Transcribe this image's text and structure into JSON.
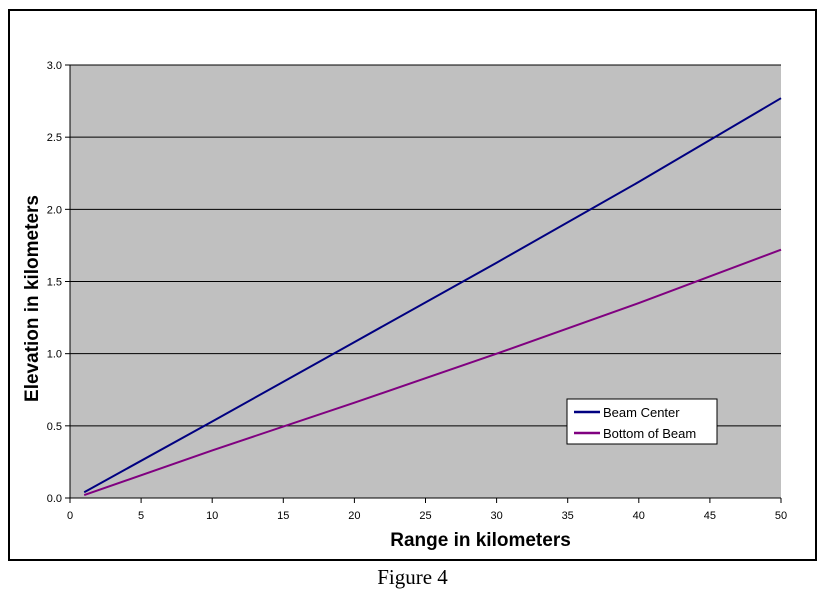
{
  "caption": "Figure 4",
  "colors": {
    "plot_bg": "#c0c0c0",
    "grid": "#000000",
    "beam_center": "#000080",
    "bottom_of_beam": "#800080"
  },
  "chart_data": {
    "type": "line",
    "title": "",
    "xlabel": "Range in kilometers",
    "ylabel": "Elevation in kilometers",
    "xlim": [
      0,
      50
    ],
    "ylim": [
      0,
      3.0
    ],
    "x_ticks": [
      "0",
      "5",
      "10",
      "15",
      "20",
      "25",
      "30",
      "35",
      "40",
      "45",
      "50"
    ],
    "y_ticks": [
      "0.0",
      "0.5",
      "1.0",
      "1.5",
      "2.0",
      "2.5",
      "3.0"
    ],
    "grid": "horizontal",
    "legend_position": "bottom-right",
    "series": [
      {
        "name": "Beam Center",
        "color": "#000080",
        "x": [
          1,
          10,
          20,
          30,
          40,
          50
        ],
        "y": [
          0.04,
          0.53,
          1.08,
          1.63,
          2.19,
          2.77
        ]
      },
      {
        "name": "Bottom of Beam",
        "color": "#800080",
        "x": [
          1,
          10,
          20,
          30,
          40,
          50
        ],
        "y": [
          0.02,
          0.33,
          0.66,
          1.0,
          1.35,
          1.72
        ]
      }
    ]
  }
}
